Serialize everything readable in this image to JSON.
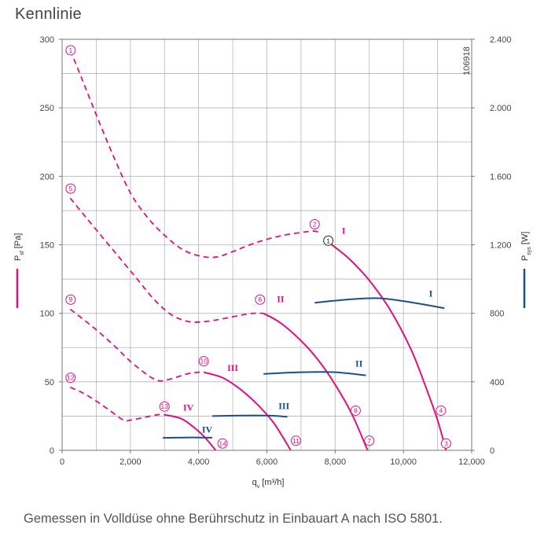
{
  "title": "Kennlinie",
  "caption": "Gemessen in Volldüse ohne Berührschutz in Einbauart A nach ISO 5801.",
  "chart_data": {
    "type": "line",
    "xlabel": "qv [m³/h]",
    "xlabel_main": "q",
    "xlabel_sub": "v",
    "xlabel_unit": " [m³/h]",
    "ylabel_left_main": "P",
    "ylabel_left_sub": "sf",
    "ylabel_left_unit": " [Pa]",
    "ylabel_right_main": "P",
    "ylabel_right_sub": "sys",
    "ylabel_right_unit": " [W]",
    "doc_number": "106918",
    "xlim": [
      0,
      12000
    ],
    "ylim_left": [
      0,
      300
    ],
    "ylim_right": [
      0,
      2400
    ],
    "x_ticks": [
      0,
      2000,
      4000,
      6000,
      8000,
      10000,
      12000
    ],
    "x_tick_labels": [
      "0",
      "2,000",
      "4,000",
      "6,000",
      "8,000",
      "10,000",
      "12,000"
    ],
    "y_left_ticks": [
      0,
      50,
      100,
      150,
      200,
      250,
      300
    ],
    "y_left_tick_labels": [
      "0",
      "50",
      "100",
      "150",
      "200",
      "250",
      "300"
    ],
    "y_right_ticks": [
      0,
      400,
      800,
      1200,
      1600,
      2000,
      2400
    ],
    "y_right_tick_labels": [
      "0",
      "400",
      "800",
      "1.200",
      "1.600",
      "2.000",
      "2.400"
    ],
    "grid": true,
    "colors": {
      "pressure": "#e0107f",
      "power": "#1a4f8f",
      "grid": "#b5b5b5"
    },
    "pressure_series": [
      {
        "name": "I",
        "axis": "left",
        "color": "#e0107f",
        "dashed": [
          [
            240,
            292
          ],
          [
            600,
            270
          ],
          [
            1000,
            245
          ],
          [
            1500,
            215
          ],
          [
            2000,
            188
          ],
          [
            2500,
            170
          ],
          [
            3000,
            157
          ],
          [
            3500,
            147
          ],
          [
            4000,
            142
          ],
          [
            4500,
            141
          ],
          [
            5000,
            145
          ],
          [
            5500,
            150
          ],
          [
            6000,
            154
          ],
          [
            6500,
            157
          ],
          [
            7000,
            159
          ],
          [
            7400,
            160
          ],
          [
            7600,
            158
          ]
        ],
        "solid": [
          [
            7800,
            152
          ],
          [
            8400,
            140
          ],
          [
            9000,
            124
          ],
          [
            9600,
            103
          ],
          [
            10200,
            75
          ],
          [
            10600,
            50
          ],
          [
            11000,
            22
          ],
          [
            11250,
            0
          ]
        ]
      },
      {
        "name": "II",
        "axis": "left",
        "color": "#e0107f",
        "dashed": [
          [
            240,
            184
          ],
          [
            700,
            170
          ],
          [
            1200,
            155
          ],
          [
            1700,
            140
          ],
          [
            2200,
            125
          ],
          [
            2700,
            110
          ],
          [
            3200,
            99
          ],
          [
            3700,
            94
          ],
          [
            4200,
            94
          ],
          [
            4700,
            96
          ],
          [
            5200,
            98.5
          ],
          [
            5600,
            100
          ],
          [
            5900,
            100
          ]
        ],
        "solid": [
          [
            5900,
            100
          ],
          [
            6400,
            93
          ],
          [
            7000,
            80
          ],
          [
            7500,
            66
          ],
          [
            8000,
            48
          ],
          [
            8500,
            26
          ],
          [
            8950,
            0
          ]
        ]
      },
      {
        "name": "III",
        "axis": "left",
        "color": "#e0107f",
        "dashed": [
          [
            240,
            103
          ],
          [
            600,
            96
          ],
          [
            1000,
            88
          ],
          [
            1500,
            77
          ],
          [
            2000,
            65
          ],
          [
            2500,
            55
          ],
          [
            2800,
            51
          ],
          [
            3000,
            51
          ],
          [
            3300,
            53
          ],
          [
            3700,
            56
          ],
          [
            4000,
            57
          ],
          [
            4150,
            57
          ]
        ],
        "solid": [
          [
            4150,
            57
          ],
          [
            4700,
            53
          ],
          [
            5200,
            45
          ],
          [
            5700,
            34
          ],
          [
            6200,
            20
          ],
          [
            6700,
            0
          ]
        ]
      },
      {
        "name": "IV",
        "axis": "left",
        "color": "#e0107f",
        "dashed": [
          [
            240,
            46
          ],
          [
            600,
            42
          ],
          [
            1000,
            36
          ],
          [
            1400,
            29
          ],
          [
            1800,
            22
          ],
          [
            2000,
            22
          ],
          [
            2400,
            24
          ],
          [
            2800,
            26
          ],
          [
            3000,
            26
          ]
        ],
        "solid": [
          [
            3000,
            26
          ],
          [
            3500,
            23
          ],
          [
            3900,
            16
          ],
          [
            4200,
            9
          ],
          [
            4500,
            0
          ]
        ]
      }
    ],
    "power_series": [
      {
        "name": "I",
        "axis": "right",
        "color": "#1a4f8f",
        "points": [
          [
            7400,
            862
          ],
          [
            8400,
            881
          ],
          [
            9300,
            888
          ],
          [
            10200,
            865
          ],
          [
            11200,
            830
          ]
        ]
      },
      {
        "name": "II",
        "axis": "right",
        "color": "#1a4f8f",
        "points": [
          [
            5900,
            446
          ],
          [
            7000,
            456
          ],
          [
            8000,
            456
          ],
          [
            8900,
            438
          ]
        ]
      },
      {
        "name": "III",
        "axis": "right",
        "color": "#1a4f8f",
        "points": [
          [
            4400,
            200
          ],
          [
            5200,
            203
          ],
          [
            6000,
            203
          ],
          [
            6600,
            196
          ]
        ]
      },
      {
        "name": "IV",
        "axis": "right",
        "color": "#1a4f8f",
        "points": [
          [
            2950,
            73
          ],
          [
            3600,
            75
          ],
          [
            4400,
            74
          ]
        ]
      }
    ],
    "annotations": [
      {
        "text": "1",
        "x": 250,
        "y": 292,
        "type": "circle",
        "color": "#e0107f"
      },
      {
        "text": "2",
        "x": 7400,
        "y": 165,
        "type": "circle",
        "color": "#e0107f"
      },
      {
        "text": "3",
        "x": 11250,
        "y": 5,
        "type": "circle",
        "color": "#e0107f"
      },
      {
        "text": "4",
        "x": 11100,
        "y": 29,
        "type": "circle",
        "color": "#e0107f"
      },
      {
        "text": "5",
        "x": 250,
        "y": 191,
        "type": "circle",
        "color": "#e0107f"
      },
      {
        "text": "6",
        "x": 5800,
        "y": 110,
        "type": "circle",
        "color": "#e0107f"
      },
      {
        "text": "7",
        "x": 9000,
        "y": 7,
        "type": "circle",
        "color": "#e0107f"
      },
      {
        "text": "8",
        "x": 8600,
        "y": 29,
        "type": "circle",
        "color": "#e0107f"
      },
      {
        "text": "9",
        "x": 250,
        "y": 110,
        "type": "circle",
        "color": "#e0107f"
      },
      {
        "text": "10",
        "x": 4150,
        "y": 65,
        "type": "circle",
        "color": "#e0107f"
      },
      {
        "text": "11",
        "x": 6850,
        "y": 7,
        "type": "circle",
        "color": "#e0107f"
      },
      {
        "text": "12",
        "x": 250,
        "y": 53,
        "type": "circle",
        "color": "#e0107f"
      },
      {
        "text": "13",
        "x": 3000,
        "y": 32,
        "type": "circle",
        "color": "#e0107f"
      },
      {
        "text": "14",
        "x": 4700,
        "y": 5,
        "type": "circle",
        "color": "#e0107f"
      },
      {
        "text": "1",
        "x": 7800,
        "y": 153,
        "type": "circle",
        "color": "#222222"
      },
      {
        "text": "I",
        "x": 8250,
        "y": 158,
        "type": "roman",
        "color": "#e0107f"
      },
      {
        "text": "II",
        "x": 6400,
        "y": 108,
        "type": "roman",
        "color": "#e0107f"
      },
      {
        "text": "III",
        "x": 5000,
        "y": 58,
        "type": "roman",
        "color": "#e0107f"
      },
      {
        "text": "IV",
        "x": 3700,
        "y": 29,
        "type": "roman",
        "color": "#e0107f"
      },
      {
        "text": "I",
        "x": 10800,
        "y": 112,
        "type": "roman",
        "color": "#1a4f8f"
      },
      {
        "text": "II",
        "x": 8700,
        "y": 61,
        "type": "roman",
        "color": "#1a4f8f"
      },
      {
        "text": "III",
        "x": 6500,
        "y": 30,
        "type": "roman",
        "color": "#1a4f8f"
      },
      {
        "text": "IV",
        "x": 4250,
        "y": 13,
        "type": "roman",
        "color": "#1a4f8f"
      }
    ]
  }
}
